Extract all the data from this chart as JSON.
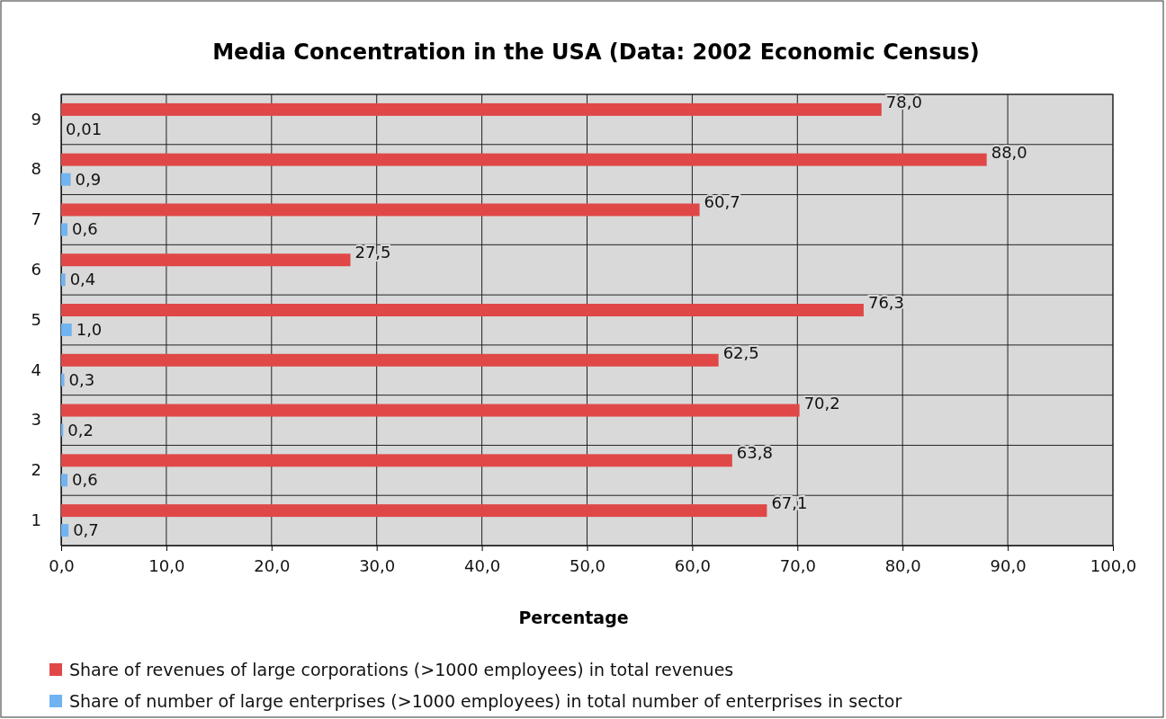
{
  "chart_data": {
    "type": "bar",
    "orientation": "horizontal",
    "title": "Media Concentration in the USA (Data: 2002 Economic Census)",
    "xlabel": "Percentage",
    "categories": [
      "9",
      "8",
      "7",
      "6",
      "5",
      "4",
      "3",
      "2",
      "1"
    ],
    "series": [
      {
        "name": "Share of revenues of large corporations (>1000 employees) in total revenues",
        "color": "#e04848",
        "values": [
          78.0,
          88.0,
          60.7,
          27.5,
          76.3,
          62.5,
          70.2,
          63.8,
          67.1
        ],
        "value_labels": [
          "78,0",
          "88,0",
          "60,7",
          "27,5",
          "76,3",
          "62,5",
          "70,2",
          "63,8",
          "67,1"
        ]
      },
      {
        "name": "Share of number of large enterprises (>1000 employees) in total number of enterprises in sector",
        "color": "#6fb3f0",
        "values": [
          0.01,
          0.9,
          0.6,
          0.4,
          1.0,
          0.3,
          0.2,
          0.6,
          0.7
        ],
        "value_labels": [
          "0,01",
          "0,9",
          "0,6",
          "0,4",
          "1,0",
          "0,3",
          "0,2",
          "0,6",
          "0,7"
        ]
      }
    ],
    "xlim": [
      0,
      100
    ],
    "xticks": [
      {
        "value": 0,
        "label": "0,0"
      },
      {
        "value": 10,
        "label": "10,0"
      },
      {
        "value": 20,
        "label": "20,0"
      },
      {
        "value": 30,
        "label": "30,0"
      },
      {
        "value": 40,
        "label": "40,0"
      },
      {
        "value": 50,
        "label": "50,0"
      },
      {
        "value": 60,
        "label": "60,0"
      },
      {
        "value": 70,
        "label": "70,0"
      },
      {
        "value": 80,
        "label": "80,0"
      },
      {
        "value": 90,
        "label": "90,0"
      },
      {
        "value": 100,
        "label": "100,0"
      }
    ],
    "grid": true,
    "legend": "bottom"
  }
}
